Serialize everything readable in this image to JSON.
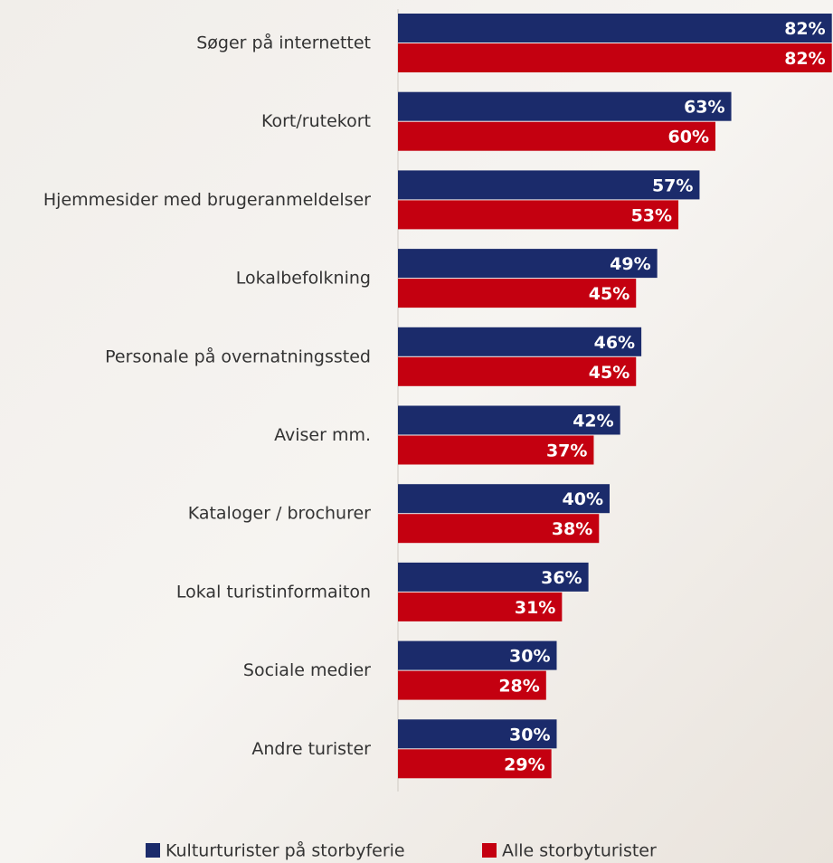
{
  "chart_data": {
    "type": "hbar",
    "categories": [
      "Søger på internettet",
      "Kort/rutekort",
      "Hjemmesider med brugeranmeldelser",
      "Lokalbefolkning",
      "Personale på overnatningssted",
      "Aviser mm.",
      "Kataloger / brochurer",
      "Lokal turistinformaiton",
      "Sociale medier",
      "Andre turister"
    ],
    "series": [
      {
        "name": "Kulturturister på storbyferie",
        "color": "#1b2b6b",
        "values": [
          82,
          63,
          57,
          49,
          46,
          42,
          40,
          36,
          30,
          30
        ],
        "value_labels": [
          "82%",
          "63%",
          "57%",
          "49%",
          "46%",
          "42%",
          "40%",
          "36%",
          "30%",
          "30%"
        ]
      },
      {
        "name": "Alle storbyturister",
        "color": "#c40010",
        "values": [
          82,
          60,
          53,
          45,
          45,
          37,
          38,
          31,
          28,
          29
        ],
        "value_labels": [
          "82%",
          "60%",
          "53%",
          "45%",
          "45%",
          "37%",
          "38%",
          "31%",
          "28%",
          "29%"
        ]
      }
    ],
    "legend": "bottom"
  }
}
